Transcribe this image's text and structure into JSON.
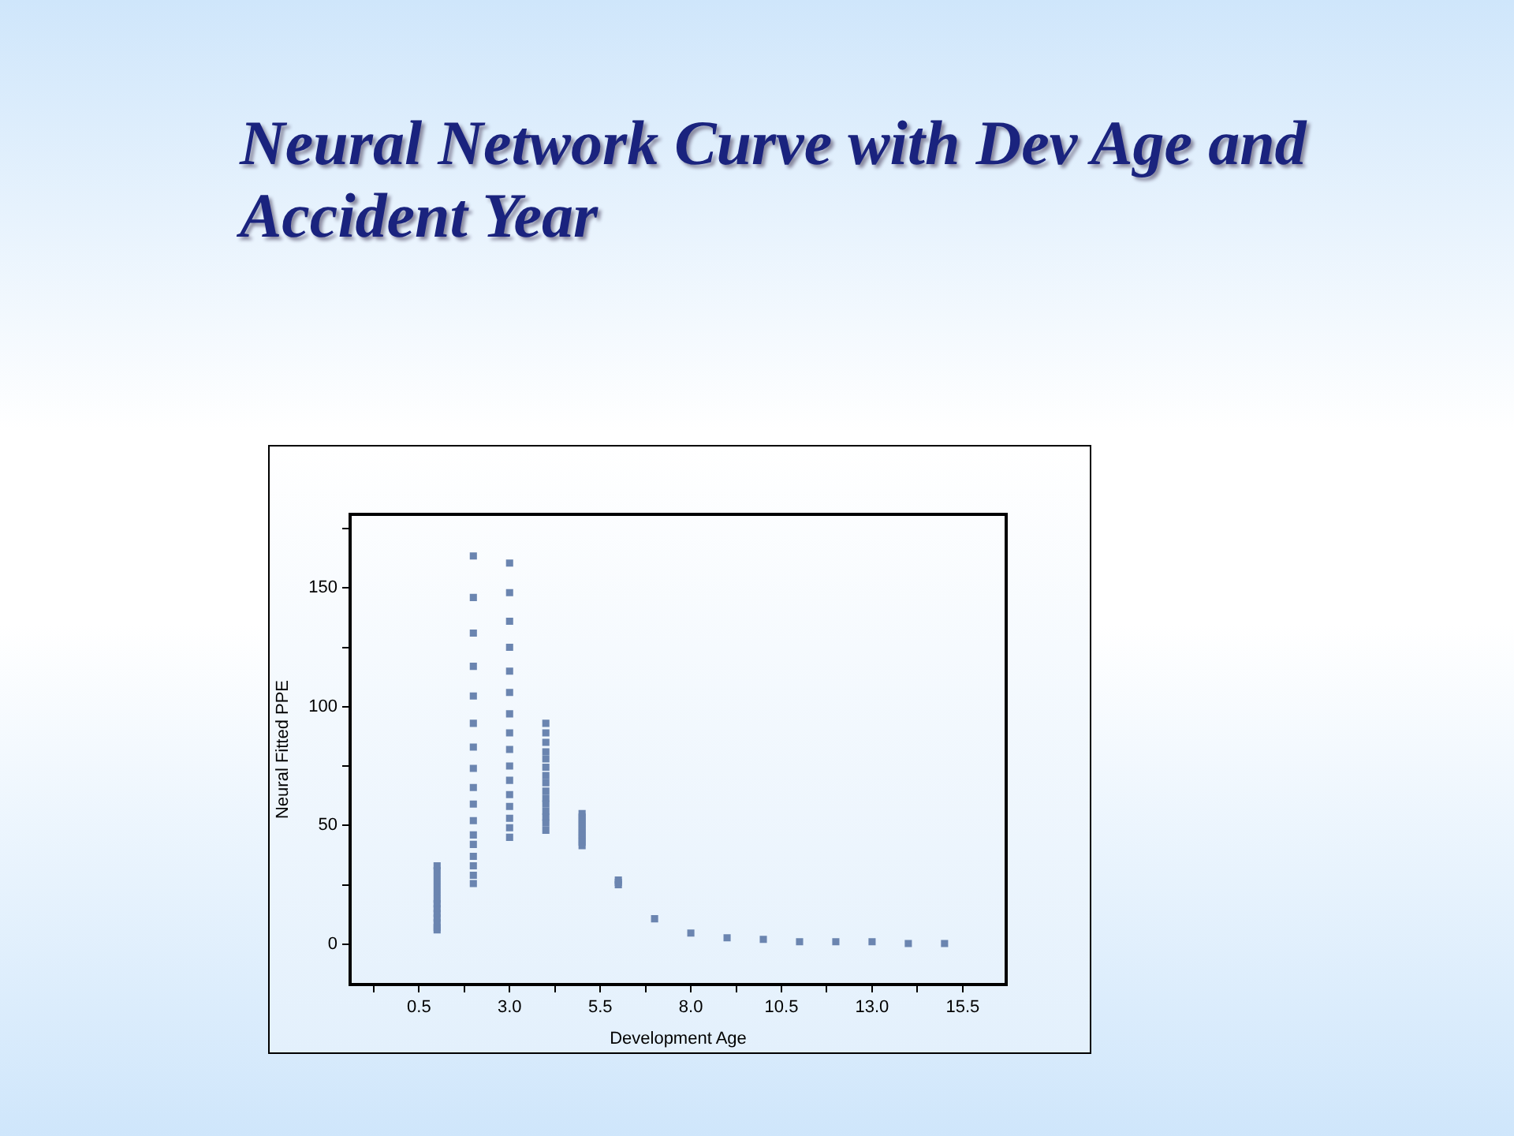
{
  "chart_data": {
    "type": "scatter",
    "title": "Neural Network Curve with Dev Age and Accident Year",
    "xlabel": "Development Age",
    "ylabel": "Neural Fitted PPE",
    "x": [
      1,
      1,
      1,
      1,
      1,
      1,
      1,
      1,
      1,
      1,
      1,
      1,
      1,
      2,
      2,
      2,
      2,
      2,
      2,
      2,
      2,
      2,
      2,
      2,
      2,
      2,
      2,
      2,
      2,
      2,
      3,
      3,
      3,
      3,
      3,
      3,
      3,
      3,
      3,
      3,
      3,
      3,
      3,
      3,
      3,
      3,
      4,
      4,
      4,
      4,
      4,
      4,
      4,
      4,
      4,
      4,
      4,
      4,
      4,
      4,
      4,
      5,
      5,
      5,
      5,
      5,
      5,
      5,
      5,
      5,
      5,
      6,
      6,
      6,
      7,
      8,
      9,
      10,
      11,
      12,
      13,
      14,
      15
    ],
    "values": [
      33,
      31,
      28,
      25,
      22,
      19,
      17,
      15,
      13,
      11,
      9,
      7,
      6,
      163.5,
      146,
      131,
      117,
      104.5,
      93,
      83,
      74,
      66,
      59,
      52,
      46,
      42,
      37,
      33,
      29,
      25.5,
      160.5,
      148,
      136,
      125,
      115,
      106,
      97,
      89,
      82,
      75,
      69,
      63,
      58,
      53,
      49,
      45,
      93,
      89,
      85,
      81,
      78,
      74.5,
      71,
      68,
      64.5,
      61.5,
      59,
      56,
      53.5,
      51,
      48,
      55,
      53.5,
      52,
      50.5,
      49,
      47.5,
      46,
      44.5,
      43,
      41.5,
      27,
      26,
      25,
      10.7,
      4.7,
      2.7,
      2,
      1,
      1,
      1,
      0.3,
      0.3
    ],
    "color": "#6b85b0",
    "marker": "square",
    "xlim": [
      -1.4,
      16.7
    ],
    "ylim": [
      -17,
      181
    ],
    "xticks": [
      {
        "value": -0.75,
        "label": null
      },
      0.5,
      {
        "value": 1.75,
        "label": null
      },
      {
        "value": 3,
        "label": "3.0"
      },
      {
        "value": 4.25,
        "label": null
      },
      5.5,
      {
        "value": 6.75,
        "label": null
      },
      {
        "value": 8,
        "label": "8.0"
      },
      {
        "value": 9.25,
        "label": null
      },
      10.5,
      {
        "value": 11.75,
        "label": null
      },
      {
        "value": 13,
        "label": "13.0"
      },
      {
        "value": 14.25,
        "label": null
      },
      15.5
    ],
    "yticks": [
      0,
      {
        "value": 25,
        "label": null
      },
      50,
      {
        "value": 75,
        "label": null
      },
      100,
      {
        "value": 125,
        "label": null
      },
      150,
      {
        "value": 175,
        "label": null
      }
    ],
    "grid": false,
    "legend": false
  }
}
